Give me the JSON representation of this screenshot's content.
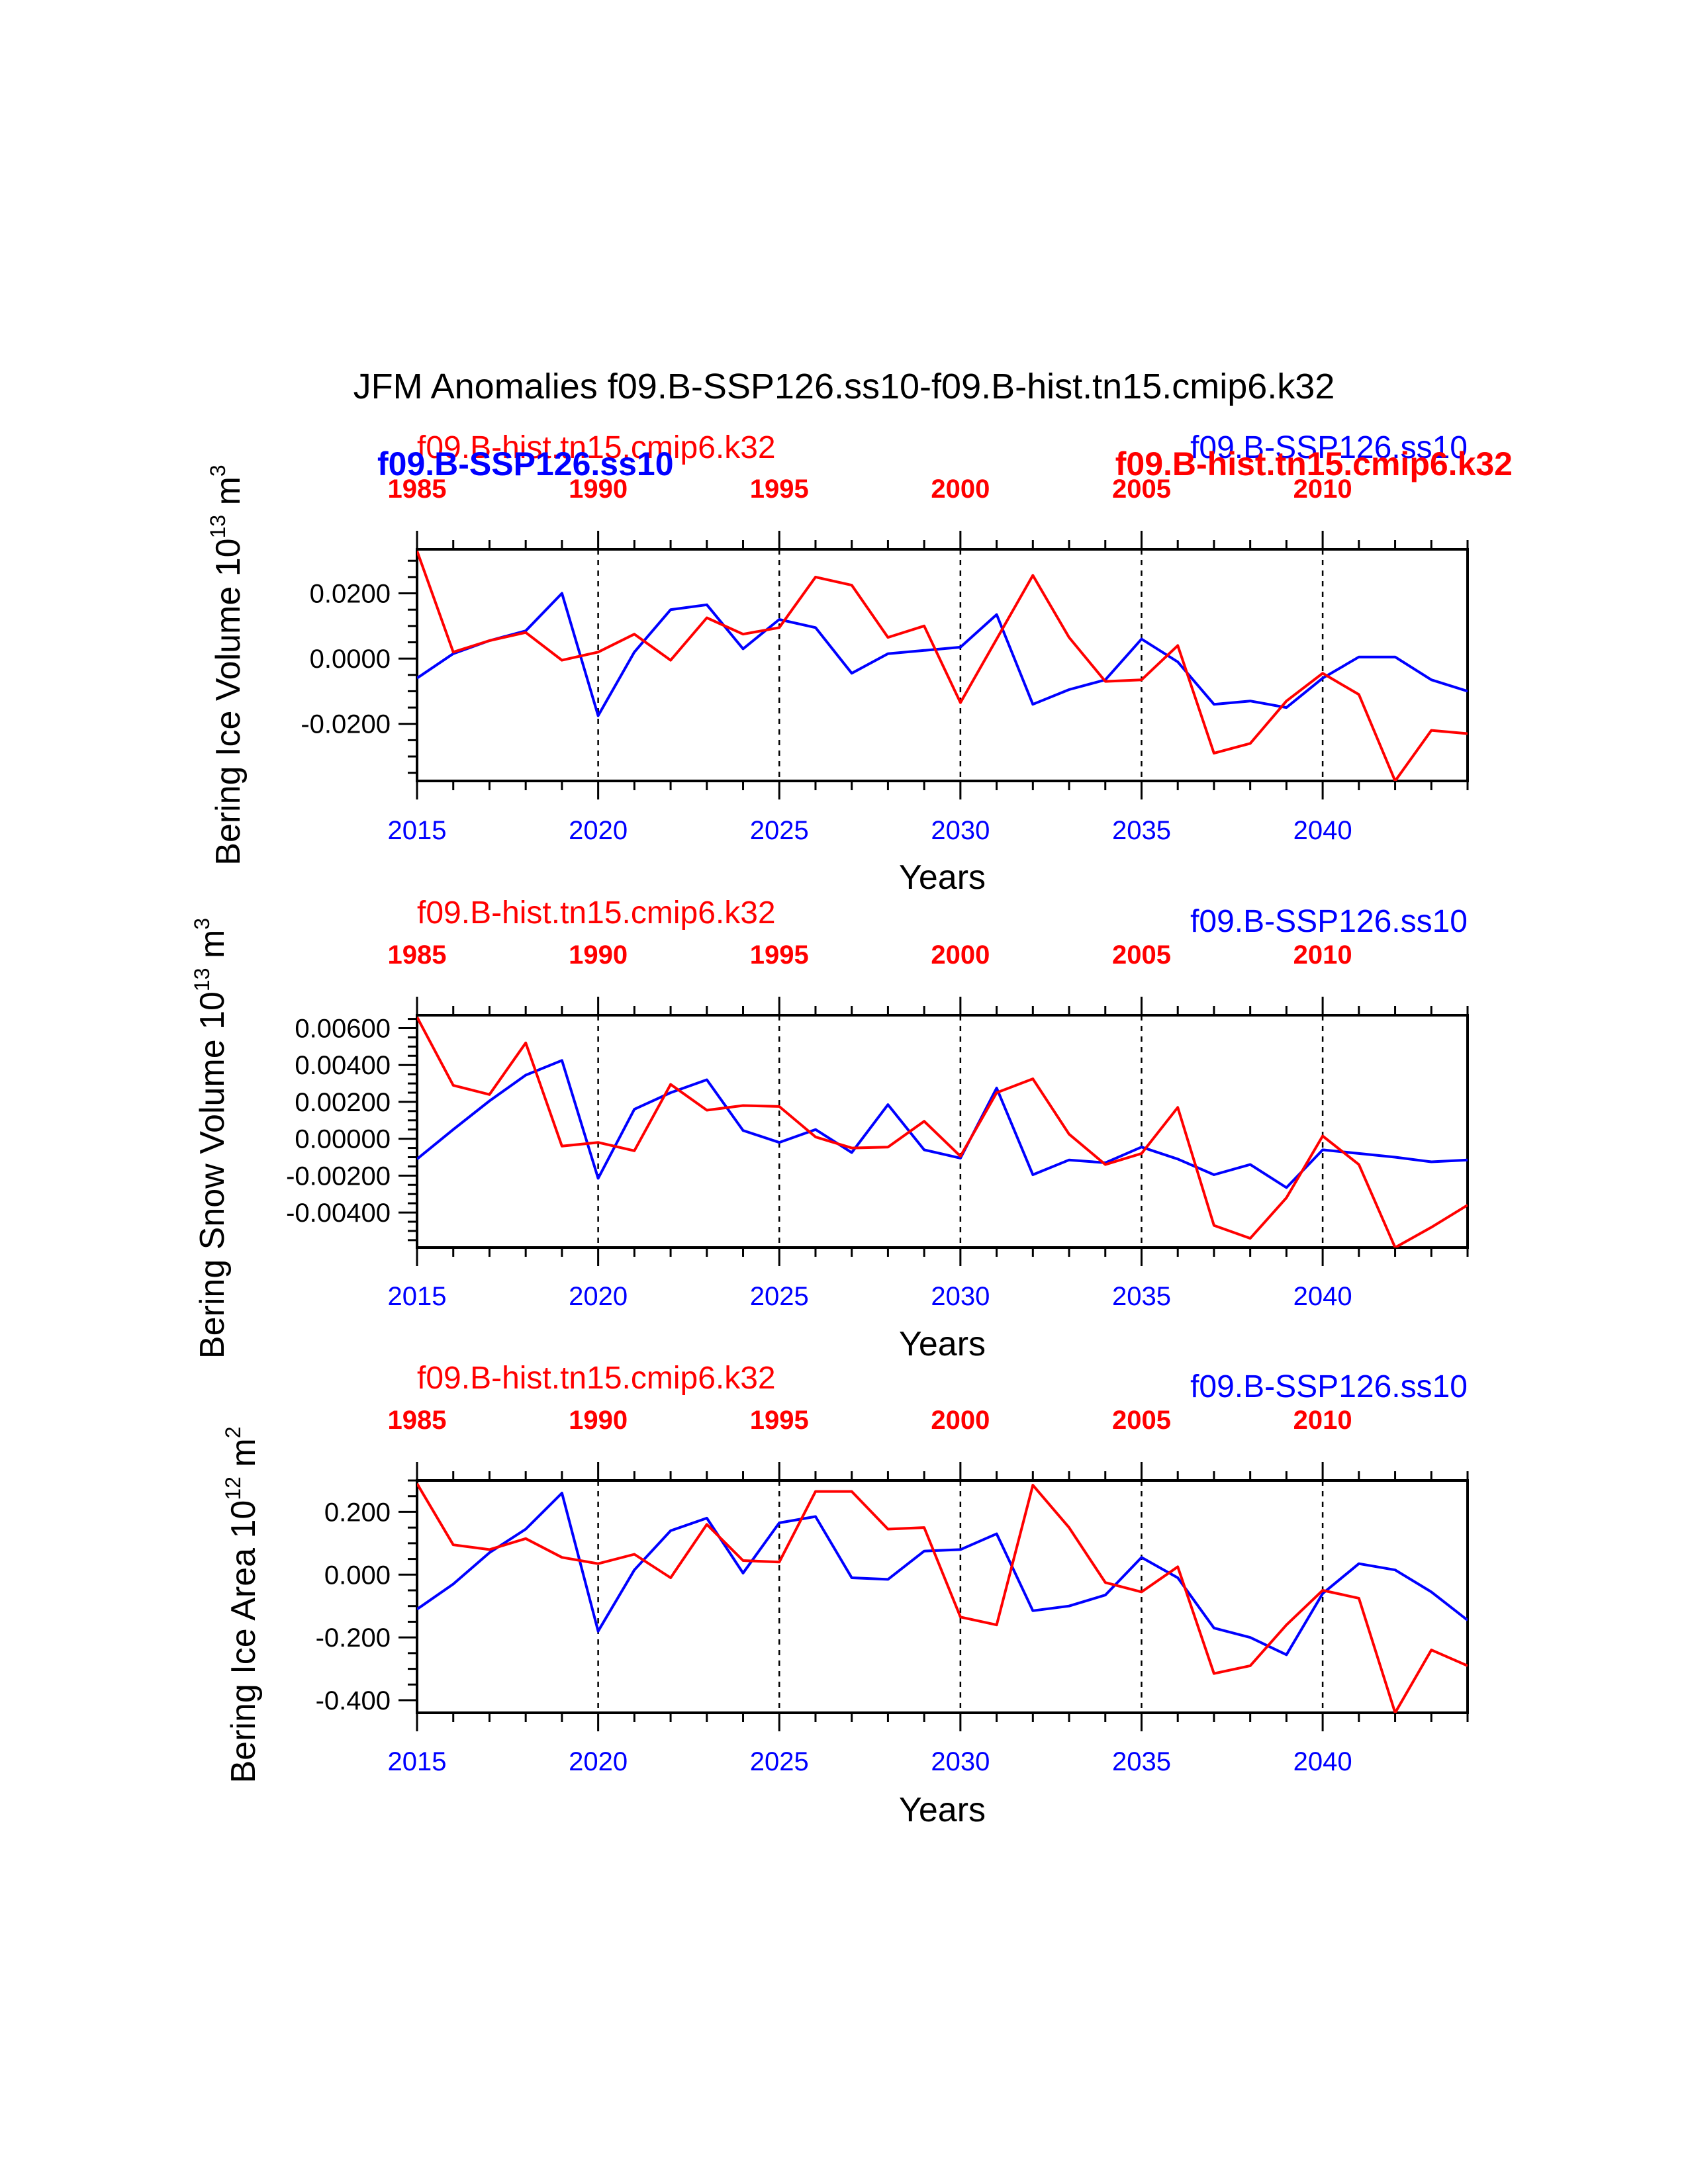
{
  "title": "JFM Anomalies f09.B-SSP126.ss10-f09.B-hist.tn15.cmip6.k32",
  "colors": {
    "ssp": "#0000ff",
    "hist": "#ff0000",
    "axis": "#000000"
  },
  "labels": {
    "ssp_name": "f09.B-SSP126.ss10",
    "hist_name": "f09.B-hist.tn15.cmip6.k32",
    "x_axis": "Years",
    "ssp_ticks": [
      "2015",
      "2020",
      "2025",
      "2030",
      "2035",
      "2040"
    ],
    "hist_ticks": [
      "1985",
      "1990",
      "1995",
      "2000",
      "2005",
      "2010"
    ]
  },
  "chart_data": [
    {
      "type": "line",
      "ylabel": "Bering Ice Volume 10",
      "ylabel_exp": "13",
      "ylabel_unit": " m",
      "ylabel_unit_exp": "3",
      "xlabel": "Years",
      "ylim": [
        -0.0375,
        0.0335
      ],
      "yticks": [
        -0.02,
        0.0,
        0.02
      ],
      "ytick_labels": [
        "-0.0200",
        "0.0000",
        "0.0200"
      ],
      "yminor": 0.005,
      "x_ssp": [
        2015,
        2016,
        2017,
        2018,
        2019,
        2020,
        2021,
        2022,
        2023,
        2024,
        2025,
        2026,
        2027,
        2028,
        2029,
        2030,
        2031,
        2032,
        2033,
        2034,
        2035,
        2036,
        2037,
        2038,
        2039,
        2040,
        2041,
        2042,
        2043,
        2044
      ],
      "x_hist": [
        1985,
        1986,
        1987,
        1988,
        1989,
        1990,
        1991,
        1992,
        1993,
        1994,
        1995,
        1996,
        1997,
        1998,
        1999,
        2000,
        2001,
        2002,
        2003,
        2004,
        2005,
        2006,
        2007,
        2008,
        2009,
        2010,
        2011,
        2012,
        2013,
        2014
      ],
      "series": [
        {
          "name": "f09.B-SSP126.ss10",
          "color": "#0000ff",
          "values": [
            -0.006,
            0.0015,
            0.0055,
            0.0085,
            0.02,
            -0.0175,
            0.002,
            0.015,
            0.0165,
            0.003,
            0.012,
            0.0095,
            -0.0045,
            0.0015,
            0.0025,
            0.0035,
            0.0135,
            -0.014,
            -0.0095,
            -0.0065,
            0.006,
            -0.001,
            -0.014,
            -0.013,
            -0.015,
            -0.006,
            0.0005,
            0.0005,
            -0.0065,
            -0.01
          ]
        },
        {
          "name": "f09.B-hist.tn15.cmip6.k32",
          "color": "#ff0000",
          "values": [
            0.033,
            0.002,
            0.0055,
            0.008,
            -0.0005,
            0.002,
            0.0075,
            -0.0005,
            0.0125,
            0.0075,
            0.0095,
            0.025,
            0.0225,
            0.0065,
            0.01,
            -0.0135,
            0.006,
            0.0255,
            0.0065,
            -0.007,
            -0.0065,
            0.004,
            -0.029,
            -0.026,
            -0.013,
            -0.0045,
            -0.011,
            -0.0375,
            -0.022,
            -0.023
          ]
        }
      ]
    },
    {
      "type": "line",
      "ylabel": "Bering Snow Volume 10",
      "ylabel_exp": "13",
      "ylabel_unit": " m",
      "ylabel_unit_exp": "3",
      "xlabel": "Years",
      "ylim": [
        -0.0059,
        0.0067
      ],
      "yticks": [
        -0.004,
        -0.002,
        0.0,
        0.002,
        0.004,
        0.006
      ],
      "ytick_labels": [
        "-0.00400",
        "-0.00200",
        "0.00000",
        "0.00200",
        "0.00400",
        "0.00600"
      ],
      "yminor": 0.0005,
      "x_ssp": [
        2015,
        2016,
        2017,
        2018,
        2019,
        2020,
        2021,
        2022,
        2023,
        2024,
        2025,
        2026,
        2027,
        2028,
        2029,
        2030,
        2031,
        2032,
        2033,
        2034,
        2035,
        2036,
        2037,
        2038,
        2039,
        2040,
        2041,
        2042,
        2043,
        2044
      ],
      "x_hist": [
        1985,
        1986,
        1987,
        1988,
        1989,
        1990,
        1991,
        1992,
        1993,
        1994,
        1995,
        1996,
        1997,
        1998,
        1999,
        2000,
        2001,
        2002,
        2003,
        2004,
        2005,
        2006,
        2007,
        2008,
        2009,
        2010,
        2011,
        2012,
        2013,
        2014
      ],
      "series": [
        {
          "name": "f09.B-SSP126.ss10",
          "color": "#0000ff",
          "values": [
            -0.0011,
            0.0005,
            0.00205,
            0.00345,
            0.00425,
            -0.00215,
            0.0016,
            0.0025,
            0.0032,
            0.00045,
            -0.0002,
            0.0005,
            -0.00075,
            0.00185,
            -0.0006,
            -0.00105,
            0.00275,
            -0.00195,
            -0.00115,
            -0.0013,
            -0.00045,
            -0.0011,
            -0.00195,
            -0.0014,
            -0.00265,
            -0.0006,
            -0.0008,
            -0.001,
            -0.00125,
            -0.00115
          ]
        },
        {
          "name": "f09.B-hist.tn15.cmip6.k32",
          "color": "#ff0000",
          "values": [
            0.0066,
            0.0029,
            0.0024,
            0.0052,
            -0.0004,
            -0.0002,
            -0.00065,
            0.00295,
            0.00155,
            0.0018,
            0.00175,
            0.0001,
            -0.0005,
            -0.00045,
            0.00095,
            -0.00095,
            0.0025,
            0.00325,
            0.00025,
            -0.0014,
            -0.0008,
            0.0017,
            -0.0047,
            -0.0054,
            -0.0032,
            0.00015,
            -0.0014,
            -0.0059,
            -0.0048,
            -0.0036
          ]
        }
      ]
    },
    {
      "type": "line",
      "ylabel": "Bering Ice Area 10",
      "ylabel_exp": "12",
      "ylabel_unit": " m",
      "ylabel_unit_exp": "2",
      "xlabel": "Years",
      "ylim": [
        -0.44,
        0.3
      ],
      "yticks": [
        -0.4,
        -0.2,
        0.0,
        0.2
      ],
      "ytick_labels": [
        "-0.400",
        "-0.200",
        "0.000",
        "0.200"
      ],
      "yminor": 0.05,
      "x_ssp": [
        2015,
        2016,
        2017,
        2018,
        2019,
        2020,
        2021,
        2022,
        2023,
        2024,
        2025,
        2026,
        2027,
        2028,
        2029,
        2030,
        2031,
        2032,
        2033,
        2034,
        2035,
        2036,
        2037,
        2038,
        2039,
        2040,
        2041,
        2042,
        2043,
        2044
      ],
      "x_hist": [
        1985,
        1986,
        1987,
        1988,
        1989,
        1990,
        1991,
        1992,
        1993,
        1994,
        1995,
        1996,
        1997,
        1998,
        1999,
        2000,
        2001,
        2002,
        2003,
        2004,
        2005,
        2006,
        2007,
        2008,
        2009,
        2010,
        2011,
        2012,
        2013,
        2014
      ],
      "series": [
        {
          "name": "f09.B-SSP126.ss10",
          "color": "#0000ff",
          "values": [
            -0.11,
            -0.03,
            0.07,
            0.145,
            0.26,
            -0.18,
            0.015,
            0.14,
            0.18,
            0.005,
            0.165,
            0.185,
            -0.01,
            -0.015,
            0.075,
            0.08,
            0.13,
            -0.115,
            -0.1,
            -0.065,
            0.055,
            -0.01,
            -0.17,
            -0.2,
            -0.255,
            -0.06,
            0.035,
            0.015,
            -0.055,
            -0.145
          ]
        },
        {
          "name": "f09.B-hist.tn15.cmip6.k32",
          "color": "#ff0000",
          "values": [
            0.29,
            0.095,
            0.08,
            0.115,
            0.055,
            0.035,
            0.065,
            -0.01,
            0.16,
            0.045,
            0.04,
            0.265,
            0.265,
            0.145,
            0.15,
            -0.135,
            -0.16,
            0.285,
            0.15,
            -0.025,
            -0.055,
            0.025,
            -0.315,
            -0.29,
            -0.16,
            -0.05,
            -0.075,
            -0.44,
            -0.24,
            -0.29
          ]
        }
      ]
    }
  ]
}
